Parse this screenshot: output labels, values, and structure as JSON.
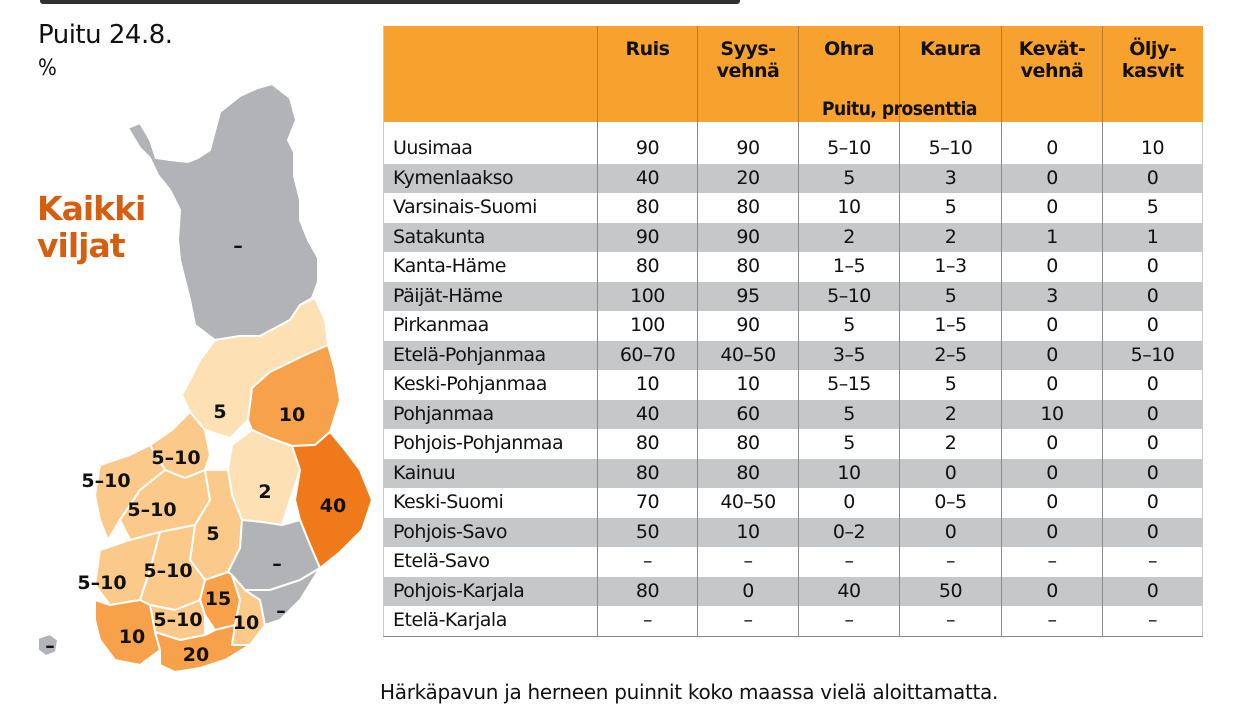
{
  "subtitle": "Puitu 24.8.",
  "unit": "%",
  "legend_title_line1": "Kaikki",
  "legend_title_line2": "viljat",
  "table": {
    "subheader": "Puitu, prosenttia",
    "columns": [
      {
        "line1": "",
        "line2": ""
      },
      {
        "line1": "Ruis",
        "line2": ""
      },
      {
        "line1": "Syys-",
        "line2": "vehnä"
      },
      {
        "line1": "Ohra",
        "line2": ""
      },
      {
        "line1": "Kaura",
        "line2": ""
      },
      {
        "line1": "Kevät-",
        "line2": "vehnä"
      },
      {
        "line1": "Öljy-",
        "line2": "kasvit"
      }
    ],
    "rows": [
      {
        "region": "Uusimaa",
        "values": [
          "90",
          "90",
          "5–10",
          "5–10",
          "0",
          "10"
        ]
      },
      {
        "region": "Kymenlaakso",
        "values": [
          "40",
          "20",
          "5",
          "3",
          "0",
          "0"
        ]
      },
      {
        "region": "Varsinais-Suomi",
        "values": [
          "80",
          "80",
          "10",
          "5",
          "0",
          "5"
        ]
      },
      {
        "region": "Satakunta",
        "values": [
          "90",
          "90",
          "2",
          "2",
          "1",
          "1"
        ]
      },
      {
        "region": "Kanta-Häme",
        "values": [
          "80",
          "80",
          "1–5",
          "1–3",
          "0",
          "0"
        ]
      },
      {
        "region": "Päijät-Häme",
        "values": [
          "100",
          "95",
          "5–10",
          "5",
          "3",
          "0"
        ]
      },
      {
        "region": "Pirkanmaa",
        "values": [
          "100",
          "90",
          "5",
          "1–5",
          "0",
          "0"
        ]
      },
      {
        "region": "Etelä-Pohjanmaa",
        "values": [
          "60–70",
          "40–50",
          "3–5",
          "2–5",
          "0",
          "5–10"
        ]
      },
      {
        "region": "Keski-Pohjanmaa",
        "values": [
          "10",
          "10",
          "5–15",
          "5",
          "0",
          "0"
        ]
      },
      {
        "region": "Pohjanmaa",
        "values": [
          "40",
          "60",
          "5",
          "2",
          "10",
          "0"
        ]
      },
      {
        "region": "Pohjois-Pohjanmaa",
        "values": [
          "80",
          "80",
          "5",
          "2",
          "0",
          "0"
        ]
      },
      {
        "region": "Kainuu",
        "values": [
          "80",
          "80",
          "10",
          "0",
          "0",
          "0"
        ]
      },
      {
        "region": "Keski-Suomi",
        "values": [
          "70",
          "40–50",
          "0",
          "0–5",
          "0",
          "0"
        ]
      },
      {
        "region": "Pohjois-Savo",
        "values": [
          "50",
          "10",
          "0–2",
          "0",
          "0",
          "0"
        ]
      },
      {
        "region": "Etelä-Savo",
        "values": [
          "–",
          "–",
          "–",
          "–",
          "–",
          "–"
        ]
      },
      {
        "region": "Pohjois-Karjala",
        "values": [
          "80",
          "0",
          "40",
          "50",
          "0",
          "0"
        ]
      },
      {
        "region": "Etelä-Karjala",
        "values": [
          "–",
          "–",
          "–",
          "–",
          "–",
          "–"
        ]
      }
    ]
  },
  "map": {
    "title": "Kaikki viljat",
    "labels": {
      "lappi": "–",
      "pohjois_pohjanmaa": "5",
      "kainuu": "10",
      "keski_pohjanmaa": "5–10",
      "pohjanmaa": "5–10",
      "etela_pohjanmaa": "5–10",
      "pohjois_savo": "2",
      "pohjois_karjala": "40",
      "keski_suomi": "5",
      "etela_savo": "–",
      "satakunta": "5–10",
      "pirkanmaa": "5–10",
      "paijat_hame": "15",
      "kanta_hame": "5–10",
      "etela_karjala": "–",
      "kymenlaakso": "10",
      "varsinais_suomi": "10",
      "uusimaa": "20",
      "ahvenanmaa": "–"
    },
    "colors": {
      "no_data": "#b1b3b6",
      "lightest": "#fde0b4",
      "light": "#fbc98a",
      "medium": "#f7a24a",
      "dark": "#f07a1a"
    }
  },
  "footnote": "Härkäpavun ja herneen puinnit koko maassa vielä aloittamatta.",
  "colors": {
    "header_orange": "#f7a12e",
    "title_orange": "#d45f10",
    "row_shade": "#c6c7c9"
  },
  "chart_data": {
    "type": "table",
    "title": "Kaikki viljat — Puitu 24.8. (%)",
    "subheader": "Puitu, prosenttia",
    "columns": [
      "Ruis",
      "Syysvehnä",
      "Ohra",
      "Kaura",
      "Kevätvehnä",
      "Öljykasvit"
    ],
    "rows": [
      [
        "Uusimaa",
        "90",
        "90",
        "5–10",
        "5–10",
        "0",
        "10"
      ],
      [
        "Kymenlaakso",
        "40",
        "20",
        "5",
        "3",
        "0",
        "0"
      ],
      [
        "Varsinais-Suomi",
        "80",
        "80",
        "10",
        "5",
        "0",
        "5"
      ],
      [
        "Satakunta",
        "90",
        "90",
        "2",
        "2",
        "1",
        "1"
      ],
      [
        "Kanta-Häme",
        "80",
        "80",
        "1–5",
        "1–3",
        "0",
        "0"
      ],
      [
        "Päijät-Häme",
        "100",
        "95",
        "5–10",
        "5",
        "3",
        "0"
      ],
      [
        "Pirkanmaa",
        "100",
        "90",
        "5",
        "1–5",
        "0",
        "0"
      ],
      [
        "Etelä-Pohjanmaa",
        "60–70",
        "40–50",
        "3–5",
        "2–5",
        "0",
        "5–10"
      ],
      [
        "Keski-Pohjanmaa",
        "10",
        "10",
        "5–15",
        "5",
        "0",
        "0"
      ],
      [
        "Pohjanmaa",
        "40",
        "60",
        "5",
        "2",
        "10",
        "0"
      ],
      [
        "Pohjois-Pohjanmaa",
        "80",
        "80",
        "5",
        "2",
        "0",
        "0"
      ],
      [
        "Kainuu",
        "80",
        "80",
        "10",
        "0",
        "0",
        "0"
      ],
      [
        "Keski-Suomi",
        "70",
        "40–50",
        "0",
        "0–5",
        "0",
        "0"
      ],
      [
        "Pohjois-Savo",
        "50",
        "10",
        "0–2",
        "0",
        "0",
        "0"
      ],
      [
        "Etelä-Savo",
        "–",
        "–",
        "–",
        "–",
        "–",
        "–"
      ],
      [
        "Pohjois-Karjala",
        "80",
        "0",
        "40",
        "50",
        "0",
        "0"
      ],
      [
        "Etelä-Karjala",
        "–",
        "–",
        "–",
        "–",
        "–",
        "–"
      ]
    ],
    "map_values_all_grains": {
      "Lappi": "–",
      "Pohjois-Pohjanmaa": "5",
      "Kainuu": "10",
      "Keski-Pohjanmaa": "5–10",
      "Pohjanmaa": "5–10",
      "Etelä-Pohjanmaa": "5–10",
      "Pohjois-Savo": "2",
      "Pohjois-Karjala": "40",
      "Keski-Suomi": "5",
      "Etelä-Savo": "–",
      "Satakunta": "5–10",
      "Pirkanmaa": "5–10",
      "Päijät-Häme": "15",
      "Kanta-Häme": "5–10",
      "Etelä-Karjala": "–",
      "Kymenlaakso": "10",
      "Varsinais-Suomi": "10",
      "Uusimaa": "20",
      "Ahvenanmaa": "–"
    },
    "footnote": "Härkäpavun ja herneen puinnit koko maassa vielä aloittamatta."
  }
}
